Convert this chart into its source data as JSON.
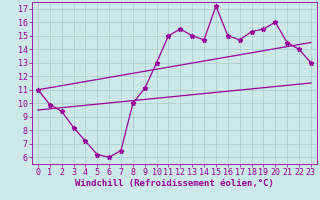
{
  "title": "",
  "xlabel": "Windchill (Refroidissement éolien,°C)",
  "ylabel": "",
  "bg_color": "#cde8e8",
  "grid_color": "#aacccc",
  "line_color": "#990099",
  "xlim": [
    -0.5,
    23.5
  ],
  "ylim": [
    5.5,
    17.5
  ],
  "xticks": [
    0,
    1,
    2,
    3,
    4,
    5,
    6,
    7,
    8,
    9,
    10,
    11,
    12,
    13,
    14,
    15,
    16,
    17,
    18,
    19,
    20,
    21,
    22,
    23
  ],
  "yticks": [
    6,
    7,
    8,
    9,
    10,
    11,
    12,
    13,
    14,
    15,
    16,
    17
  ],
  "line1_x": [
    0,
    1,
    2,
    3,
    4,
    5,
    6,
    7,
    8,
    9,
    10,
    11,
    12,
    13,
    14,
    15,
    16,
    17,
    18,
    19,
    20,
    21,
    22,
    23
  ],
  "line1_y": [
    11.0,
    9.9,
    9.4,
    8.2,
    7.2,
    6.2,
    6.0,
    6.5,
    10.0,
    11.1,
    13.0,
    15.0,
    15.5,
    15.0,
    14.7,
    17.2,
    15.0,
    14.7,
    15.3,
    15.5,
    16.0,
    14.5,
    14.0,
    13.0
  ],
  "line2_x": [
    0,
    23
  ],
  "line2_y": [
    9.5,
    11.5
  ],
  "line3_x": [
    0,
    23
  ],
  "line3_y": [
    11.0,
    14.5
  ],
  "marker": "*",
  "marker_size": 3.5,
  "line_width": 0.9,
  "xlabel_fontsize": 6.5,
  "tick_fontsize": 6
}
